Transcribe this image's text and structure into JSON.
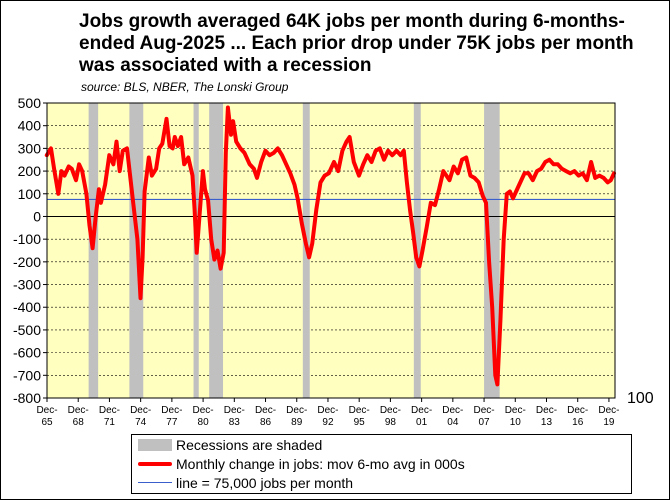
{
  "chart_data": {
    "type": "line",
    "title": "Jobs growth averaged 64K jobs per month during 6-months-ended Aug-2025 ... Each prior drop under 75K jobs per month was associated with a recession",
    "source": "source: BLS, NBER, The Lonski Group",
    "ylim": [
      -800,
      500
    ],
    "yticks": [
      500,
      400,
      300,
      200,
      100,
      0,
      -100,
      -200,
      -300,
      -400,
      -500,
      -600,
      -700,
      -800
    ],
    "secondary_axis_label": "100",
    "x_range": [
      1965.917,
      2020.5
    ],
    "xticks": [
      {
        "line1": "Dec-",
        "line2": "65"
      },
      {
        "line1": "Dec-",
        "line2": "68"
      },
      {
        "line1": "Dec-",
        "line2": "71"
      },
      {
        "line1": "Dec-",
        "line2": "74"
      },
      {
        "line1": "Dec-",
        "line2": "77"
      },
      {
        "line1": "Dec-",
        "line2": "80"
      },
      {
        "line1": "Dec-",
        "line2": "83"
      },
      {
        "line1": "Dec-",
        "line2": "86"
      },
      {
        "line1": "Dec-",
        "line2": "89"
      },
      {
        "line1": "Dec-",
        "line2": "92"
      },
      {
        "line1": "Dec-",
        "line2": "95"
      },
      {
        "line1": "Dec-",
        "line2": "98"
      },
      {
        "line1": "Dec-",
        "line2": "01"
      },
      {
        "line1": "Dec-",
        "line2": "04"
      },
      {
        "line1": "Dec-",
        "line2": "07"
      },
      {
        "line1": "Dec-",
        "line2": "10"
      },
      {
        "line1": "Dec-",
        "line2": "13"
      },
      {
        "line1": "Dec-",
        "line2": "16"
      },
      {
        "line1": "Dec-",
        "line2": "19"
      }
    ],
    "xtick_years": [
      1965.917,
      1968.917,
      1971.917,
      1974.917,
      1977.917,
      1980.917,
      1983.917,
      1986.917,
      1989.917,
      1992.917,
      1995.917,
      1998.917,
      2001.917,
      2004.917,
      2007.917,
      2010.917,
      2013.917,
      2016.917,
      2019.917
    ],
    "recessions": [
      [
        1969.917,
        1970.833
      ],
      [
        1973.833,
        1975.167
      ],
      [
        1980.0,
        1980.5
      ],
      [
        1981.5,
        1982.833
      ],
      [
        1990.5,
        1991.167
      ],
      [
        2001.167,
        2001.833
      ],
      [
        2007.917,
        2009.417
      ]
    ],
    "threshold_line": 75,
    "series": [
      {
        "name": "Monthly change in jobs: mov 6-mo avg in 000s",
        "color": "#ff0000",
        "x": [
          1965.9,
          1966.3,
          1966.6,
          1967.0,
          1967.3,
          1967.6,
          1968.0,
          1968.3,
          1968.7,
          1969.0,
          1969.3,
          1969.7,
          1970.0,
          1970.3,
          1970.6,
          1970.9,
          1971.1,
          1971.5,
          1971.9,
          1972.3,
          1972.6,
          1972.9,
          1973.2,
          1973.6,
          1973.9,
          1974.2,
          1974.6,
          1974.9,
          1975.1,
          1975.3,
          1975.7,
          1976.0,
          1976.4,
          1976.7,
          1977.0,
          1977.4,
          1977.7,
          1978.0,
          1978.2,
          1978.5,
          1978.8,
          1979.1,
          1979.5,
          1979.9,
          1980.1,
          1980.3,
          1980.6,
          1980.9,
          1981.1,
          1981.4,
          1981.7,
          1982.0,
          1982.3,
          1982.6,
          1982.9,
          1983.1,
          1983.3,
          1983.6,
          1983.8,
          1984.1,
          1984.5,
          1984.9,
          1985.4,
          1985.8,
          1986.1,
          1986.5,
          1986.9,
          1987.3,
          1987.7,
          1988.1,
          1988.5,
          1988.9,
          1989.3,
          1989.7,
          1990.0,
          1990.4,
          1990.8,
          1991.1,
          1991.4,
          1991.8,
          1992.2,
          1992.6,
          1993.0,
          1993.5,
          1993.9,
          1994.3,
          1994.7,
          1995.0,
          1995.4,
          1995.9,
          1996.3,
          1996.7,
          1997.1,
          1997.5,
          1997.9,
          1998.3,
          1998.7,
          1999.1,
          1999.5,
          1999.9,
          2000.2,
          2000.5,
          2000.8,
          2001.1,
          2001.4,
          2001.7,
          2002.0,
          2002.4,
          2002.8,
          2003.2,
          2003.6,
          2004.0,
          2004.3,
          2004.6,
          2005.0,
          2005.4,
          2005.8,
          2006.2,
          2006.6,
          2007.0,
          2007.4,
          2007.8,
          2008.1,
          2008.4,
          2008.7,
          2009.0,
          2009.2,
          2009.5,
          2009.8,
          2010.1,
          2010.4,
          2010.7,
          2011.0,
          2011.4,
          2011.8,
          2012.2,
          2012.6,
          2013.0,
          2013.4,
          2013.8,
          2014.2,
          2014.6,
          2015.0,
          2015.4,
          2015.8,
          2016.2,
          2016.6,
          2017.0,
          2017.4,
          2017.8,
          2018.2,
          2018.6,
          2019.0,
          2019.4,
          2019.8,
          2020.1,
          2020.4
        ],
        "values": [
          270,
          300,
          210,
          100,
          200,
          180,
          220,
          210,
          160,
          230,
          200,
          100,
          -40,
          -140,
          0,
          120,
          60,
          140,
          270,
          230,
          330,
          200,
          290,
          300,
          180,
          60,
          -100,
          -360,
          -180,
          110,
          260,
          180,
          210,
          300,
          320,
          430,
          310,
          300,
          350,
          310,
          350,
          230,
          260,
          180,
          30,
          -160,
          20,
          200,
          120,
          70,
          -100,
          -190,
          -150,
          -230,
          -160,
          280,
          480,
          360,
          420,
          330,
          300,
          280,
          230,
          210,
          170,
          240,
          290,
          270,
          280,
          300,
          270,
          230,
          190,
          140,
          80,
          -30,
          -120,
          -180,
          -120,
          30,
          150,
          180,
          190,
          240,
          200,
          290,
          330,
          350,
          240,
          180,
          230,
          270,
          240,
          290,
          300,
          250,
          290,
          270,
          290,
          270,
          290,
          150,
          30,
          -70,
          -180,
          -220,
          -150,
          -50,
          60,
          50,
          120,
          200,
          180,
          160,
          220,
          190,
          250,
          260,
          180,
          170,
          150,
          90,
          60,
          -200,
          -400,
          -700,
          -740,
          -450,
          -100,
          100,
          110,
          80,
          110,
          150,
          190,
          190,
          160,
          200,
          210,
          240,
          250,
          230,
          230,
          210,
          200,
          190,
          200,
          180,
          190,
          160,
          240,
          170,
          180,
          170,
          150,
          160,
          190
        ]
      }
    ],
    "legend": [
      {
        "key": "recession",
        "label": "Recessions are shaded",
        "color": "#c0c0c0"
      },
      {
        "key": "series",
        "label": "Monthly change in jobs: mov 6-mo avg in 000s",
        "color": "#ff0000"
      },
      {
        "key": "threshold",
        "label": "line = 75,000 jobs per month",
        "color": "#3a5fcd"
      }
    ]
  }
}
